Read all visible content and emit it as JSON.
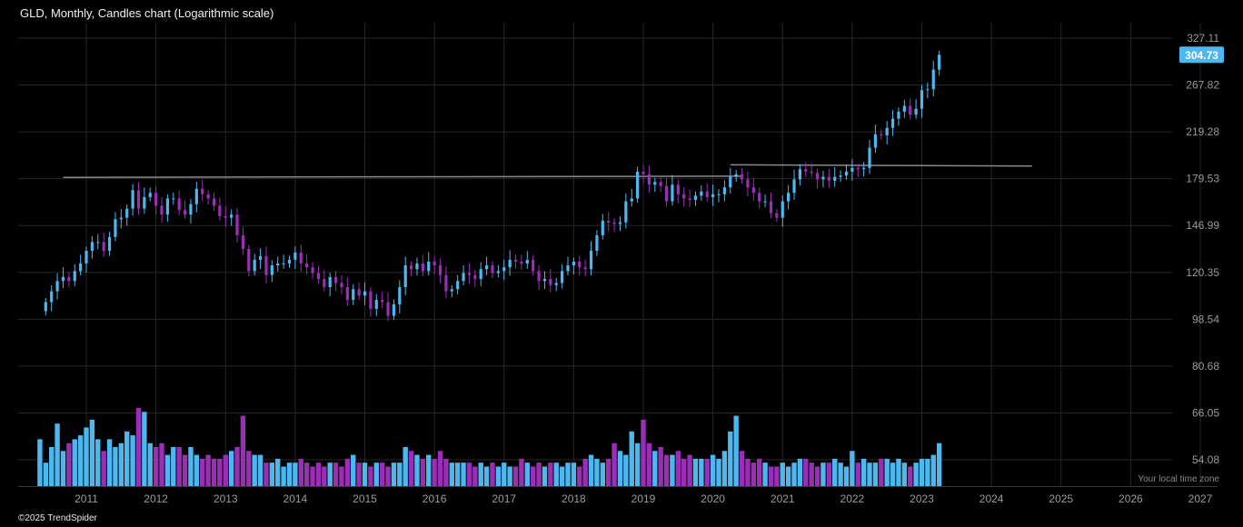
{
  "title": "GLD, Monthly, Candles chart (Logarithmic scale)",
  "copyright": "©2025 TrendSpider",
  "timezone_label": "Your local time zone",
  "colors": {
    "up": "#4db8f0",
    "down": "#9a2fb5",
    "grid": "#262626",
    "trendline": "#8a8a8a",
    "background": "#000000"
  },
  "chart_data": {
    "type": "candlestick",
    "scale": "logarithmic",
    "interval": "monthly",
    "ticker": "GLD",
    "last_price": "304.73",
    "y_ticks": [
      "327.11",
      "267.82",
      "219.28",
      "179.53",
      "146.99",
      "120.35",
      "98.54",
      "80.68",
      "66.05",
      "54.08"
    ],
    "x_ticks": [
      "2011",
      "2012",
      "2013",
      "2014",
      "2015",
      "2016",
      "2017",
      "2018",
      "2019",
      "2020",
      "2021",
      "2022",
      "2023",
      "2024",
      "2025",
      "2026",
      "2027"
    ],
    "x_range": [
      "2010-05",
      "2027-02"
    ],
    "y_range": [
      49.5,
      345
    ],
    "trendlines": [
      {
        "from": [
          "2010-09",
          180.5
        ],
        "to": [
          "2020-06",
          181.5
        ]
      },
      {
        "from": [
          "2020-04",
          190.5
        ],
        "to": [
          "2024-08",
          189.5
        ]
      }
    ],
    "closes": [
      "2010-05",
      102,
      [
        106,
        111,
        116,
        118,
        116,
        121,
        125,
        132,
        137,
        137,
        132,
        140,
        151,
        152,
        158,
        171,
        158,
        166,
        169,
        160,
        154,
        165,
        165,
        157,
        154,
        161,
        172,
        168,
        165,
        160,
        153,
        152,
        154,
        141,
        133,
        121,
        127,
        129,
        119,
        124,
        125,
        125,
        127,
        131,
        125,
        123,
        120,
        117,
        113,
        118,
        115,
        113,
        107,
        112,
        109,
        111,
        103,
        107,
        106,
        100,
        105,
        113,
        124,
        122,
        125,
        121,
        126,
        124,
        119,
        111,
        112,
        116,
        120,
        119,
        117,
        122,
        124,
        120,
        121,
        123,
        127,
        126,
        125,
        127,
        121,
        116,
        117,
        114,
        115,
        121,
        124,
        126,
        123,
        122,
        132,
        141,
        150,
        149,
        148,
        149,
        163,
        165,
        185,
        183,
        175,
        177,
        174,
        163,
        175,
        168,
        165,
        164,
        167,
        170,
        166,
        168,
        168,
        173,
        181,
        183,
        179,
        173,
        169,
        163,
        163,
        155,
        152,
        163,
        169,
        179,
        187,
        185,
        184,
        179,
        181,
        178,
        181,
        182,
        185,
        188,
        187,
        188,
        205,
        217,
        216,
        223,
        232,
        239,
        245,
        236,
        242,
        262,
        263,
        286,
        304.73
      ]
    ],
    "volume_relative": [
      0.6,
      0.3,
      0.5,
      0.8,
      0.45,
      0.55,
      0.6,
      0.65,
      0.75,
      0.85,
      0.6,
      0.45,
      0.6,
      0.5,
      0.55,
      0.7,
      0.65,
      1.0,
      0.95,
      0.55,
      0.5,
      0.55,
      0.4,
      0.5,
      0.5,
      0.4,
      0.5,
      0.4,
      0.35,
      0.4,
      0.35,
      0.35,
      0.4,
      0.45,
      0.5,
      0.9,
      0.45,
      0.4,
      0.4,
      0.3,
      0.3,
      0.35,
      0.25,
      0.3,
      0.3,
      0.35,
      0.3,
      0.25,
      0.3,
      0.25,
      0.3,
      0.3,
      0.25,
      0.35,
      0.4,
      0.3,
      0.3,
      0.25,
      0.3,
      0.3,
      0.25,
      0.3,
      0.3,
      0.5,
      0.45,
      0.4,
      0.35,
      0.4,
      0.35,
      0.45,
      0.35,
      0.3,
      0.3,
      0.3,
      0.3,
      0.25,
      0.3,
      0.25,
      0.3,
      0.25,
      0.3,
      0.25,
      0.25,
      0.35,
      0.3,
      0.25,
      0.3,
      0.25,
      0.3,
      0.3,
      0.25,
      0.3,
      0.3,
      0.25,
      0.35,
      0.4,
      0.35,
      0.3,
      0.35,
      0.55,
      0.45,
      0.4,
      0.7,
      0.55,
      0.85,
      0.55,
      0.45,
      0.5,
      0.4,
      0.4,
      0.45,
      0.35,
      0.4,
      0.35,
      0.35,
      0.35,
      0.4,
      0.35,
      0.45,
      0.7,
      0.9,
      0.45,
      0.35,
      0.3,
      0.35,
      0.3,
      0.25,
      0.25,
      0.3,
      0.25,
      0.3,
      0.35,
      0.35,
      0.3,
      0.25,
      0.3,
      0.3,
      0.35,
      0.3,
      0.25,
      0.45,
      0.3,
      0.35,
      0.3,
      0.3,
      0.35,
      0.35,
      0.3,
      0.35,
      0.3,
      0.25,
      0.3,
      0.35,
      0.35,
      0.4,
      0.55
    ]
  }
}
